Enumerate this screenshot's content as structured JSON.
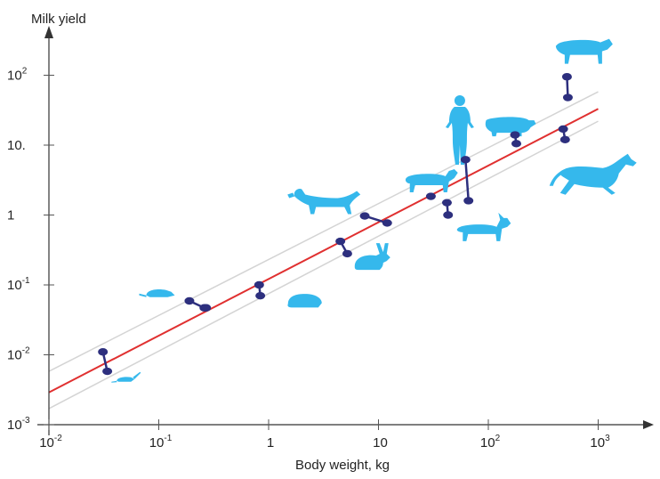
{
  "colors": {
    "axis": "#333333",
    "tick": "#555555",
    "fit_line": "#e03030",
    "band_line": "#d4d4d4",
    "marker": "#2d2f7e",
    "silhouette": "#35b8ec"
  },
  "chart_data": {
    "type": "scatter",
    "title": "",
    "xlabel": "Body weight, kg",
    "ylabel": "Milk yield",
    "x_scale": "log",
    "y_scale": "log",
    "xlim": [
      0.01,
      1500
    ],
    "ylim": [
      0.001,
      500
    ],
    "grid": false,
    "x_ticks": [
      {
        "value": 0.01,
        "base": "10",
        "exp": "-2"
      },
      {
        "value": 0.1,
        "base": "10",
        "exp": "-1"
      },
      {
        "value": 1,
        "base": "1",
        "exp": ""
      },
      {
        "value": 10,
        "base": "10",
        "exp": ""
      },
      {
        "value": 100,
        "base": "10",
        "exp": "2"
      },
      {
        "value": 1000,
        "base": "10",
        "exp": "3"
      }
    ],
    "y_ticks": [
      {
        "value": 0.001,
        "base": "10",
        "exp": "-3"
      },
      {
        "value": 0.01,
        "base": "10",
        "exp": "-2"
      },
      {
        "value": 0.1,
        "base": "10",
        "exp": "-1"
      },
      {
        "value": 1,
        "base": "1",
        "exp": ""
      },
      {
        "value": 10,
        "base": "10.",
        "exp": ""
      },
      {
        "value": 100,
        "base": "10",
        "exp": "2"
      }
    ],
    "fit_line": {
      "x": [
        0.01,
        1000
      ],
      "y": [
        0.0029,
        33
      ]
    },
    "band_upper": {
      "x": [
        0.01,
        1000
      ],
      "y": [
        0.0058,
        58
      ]
    },
    "band_lower": {
      "x": [
        0.01,
        1000
      ],
      "y": [
        0.0017,
        22
      ]
    },
    "species": [
      {
        "animal": "mouse",
        "x": [
          0.031,
          0.034
        ],
        "y": [
          0.011,
          0.0058
        ]
      },
      {
        "animal": "rat",
        "x": [
          0.19,
          0.26,
          0.27
        ],
        "y": [
          0.059,
          0.047,
          0.047
        ]
      },
      {
        "animal": "guinea-pig",
        "x": [
          0.82,
          0.84
        ],
        "y": [
          0.1,
          0.07
        ]
      },
      {
        "animal": "rabbit",
        "x": [
          4.5,
          5.2
        ],
        "y": [
          0.42,
          0.28
        ]
      },
      {
        "animal": "dog",
        "x": [
          7.5,
          12
        ],
        "y": [
          0.97,
          0.77
        ]
      },
      {
        "animal": "sheep",
        "x": [
          30
        ],
        "y": [
          1.85
        ]
      },
      {
        "animal": "goat",
        "x": [
          42,
          43
        ],
        "y": [
          1.5,
          1.0
        ]
      },
      {
        "animal": "human",
        "x": [
          62,
          66
        ],
        "y": [
          6.2,
          1.6
        ]
      },
      {
        "animal": "pig",
        "x": [
          175,
          180
        ],
        "y": [
          14,
          10.5
        ]
      },
      {
        "animal": "horse",
        "x": [
          480,
          500
        ],
        "y": [
          17,
          12
        ]
      },
      {
        "animal": "cow",
        "x": [
          520,
          530
        ],
        "y": [
          95,
          48
        ]
      }
    ],
    "silhouettes": [
      {
        "icon": "mouse-icon",
        "x": 0.05,
        "y": 0.0045
      },
      {
        "icon": "rat-icon",
        "x": 0.1,
        "y": 0.075
      },
      {
        "icon": "guinea-pig-icon",
        "x": 2.1,
        "y": 0.06
      },
      {
        "icon": "rabbit-icon",
        "x": 8.5,
        "y": 0.22
      },
      {
        "icon": "dog-icon",
        "x": 3.5,
        "y": 1.55
      },
      {
        "icon": "sheep-icon",
        "x": 28,
        "y": 3.0
      },
      {
        "icon": "goat-icon",
        "x": 85,
        "y": 0.6
      },
      {
        "icon": "human-icon",
        "x": 55,
        "y": 16
      },
      {
        "icon": "pig-icon",
        "x": 155,
        "y": 19
      },
      {
        "icon": "horse-icon",
        "x": 950,
        "y": 3.5
      },
      {
        "icon": "cow-icon",
        "x": 720,
        "y": 220
      }
    ]
  }
}
